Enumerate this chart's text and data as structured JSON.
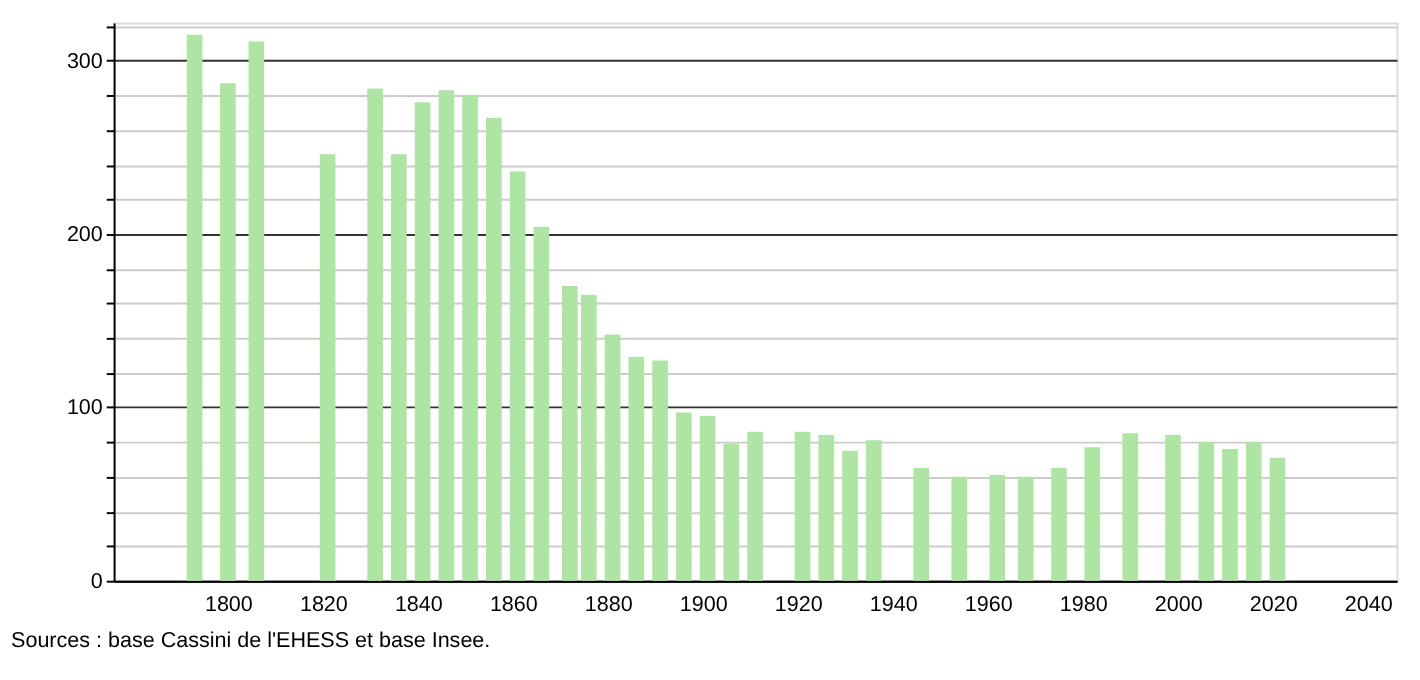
{
  "chart_data": {
    "type": "bar",
    "x": [
      1793,
      1800,
      1806,
      1821,
      1831,
      1836,
      1841,
      1846,
      1851,
      1856,
      1861,
      1866,
      1872,
      1876,
      1881,
      1886,
      1891,
      1896,
      1901,
      1906,
      1911,
      1921,
      1926,
      1931,
      1936,
      1946,
      1954,
      1962,
      1968,
      1975,
      1982,
      1990,
      1999,
      2006,
      2011,
      2016,
      2021
    ],
    "values": [
      315,
      287,
      311,
      246,
      284,
      246,
      276,
      283,
      280,
      267,
      236,
      204,
      170,
      165,
      142,
      129,
      127,
      97,
      95,
      79,
      86,
      86,
      84,
      75,
      81,
      65,
      60,
      61,
      60,
      65,
      77,
      85,
      84,
      80,
      76,
      80,
      71
    ],
    "color": "#aee5a5",
    "xlim": [
      1778,
      2044
    ],
    "xticks": [
      1800,
      1820,
      1840,
      1860,
      1880,
      1900,
      1920,
      1940,
      1960,
      1980,
      2000,
      2020,
      2040
    ],
    "ylim": [
      0,
      322
    ],
    "yticks": [
      0,
      {
        "value": 20,
        "label": null
      },
      {
        "value": 40,
        "label": null
      },
      {
        "value": 60,
        "label": null
      },
      {
        "value": 80,
        "label": null
      },
      100,
      {
        "value": 120,
        "label": null
      },
      {
        "value": 140,
        "label": null
      },
      {
        "value": 160,
        "label": null
      },
      {
        "value": 180,
        "label": null
      },
      200,
      {
        "value": 220,
        "label": null
      },
      {
        "value": 240,
        "label": null
      },
      {
        "value": 260,
        "label": null
      },
      {
        "value": 280,
        "label": null
      },
      300,
      {
        "value": 320,
        "label": null
      }
    ],
    "grid": "y",
    "annotations": [
      "Sources : base Cassini de l'EHESS et base Insee."
    ]
  }
}
